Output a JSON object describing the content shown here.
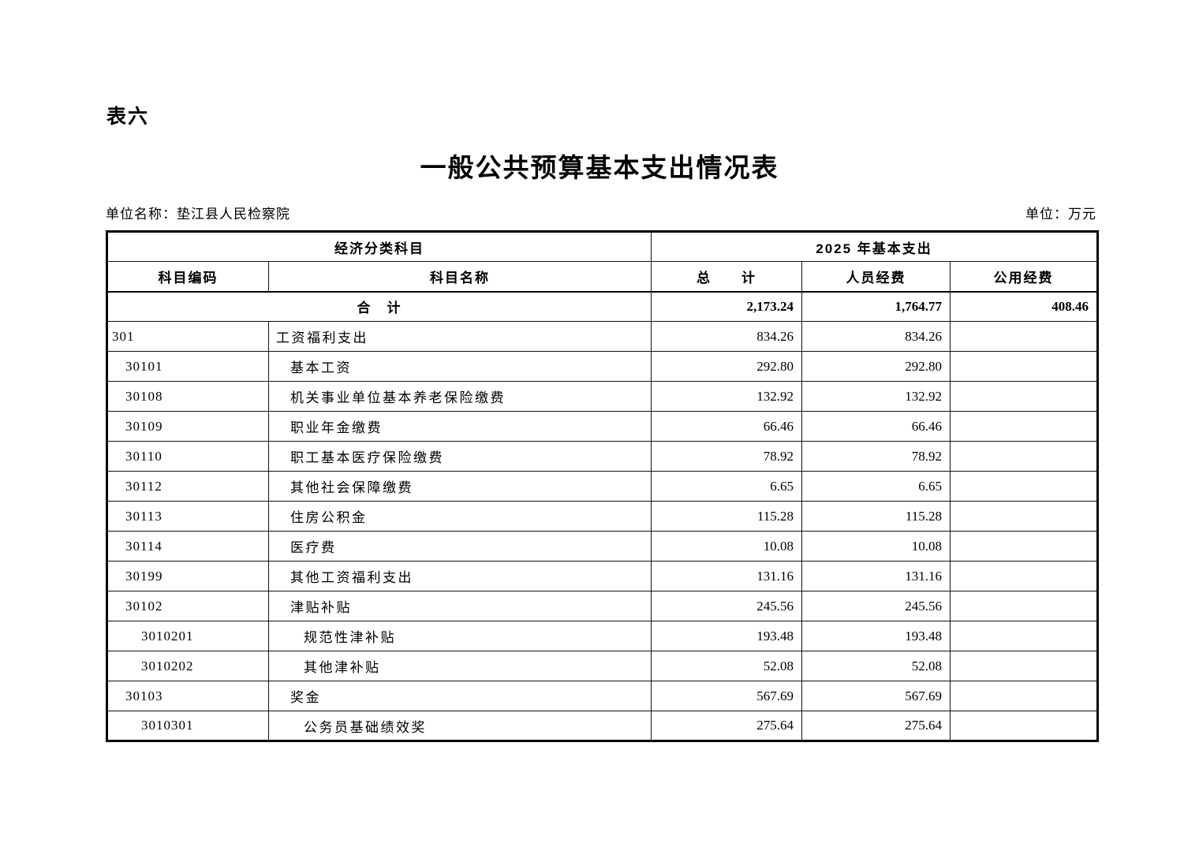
{
  "page": {
    "table_label": "表六",
    "title": "一般公共预算基本支出情况表",
    "unit_name": "单位名称：垫江县人民检察院",
    "unit_measure": "单位：万元"
  },
  "table": {
    "header": {
      "group_left": "经济分类科目",
      "group_right": "2025 年基本支出",
      "col_code": "科目编码",
      "col_name": "科目名称",
      "col_total": "总　　计",
      "col_personnel": "人员经费",
      "col_public": "公用经费"
    },
    "total_row": {
      "label": "合　计",
      "total": "2,173.24",
      "personnel": "1,764.77",
      "public": "408.46"
    },
    "rows": [
      {
        "code": "301",
        "name": "工资福利支出",
        "level": 1,
        "total": "834.26",
        "personnel": "834.26",
        "public": ""
      },
      {
        "code": "30101",
        "name": "基本工资",
        "level": 2,
        "total": "292.80",
        "personnel": "292.80",
        "public": ""
      },
      {
        "code": "30108",
        "name": "机关事业单位基本养老保险缴费",
        "level": 2,
        "total": "132.92",
        "personnel": "132.92",
        "public": ""
      },
      {
        "code": "30109",
        "name": "职业年金缴费",
        "level": 2,
        "total": "66.46",
        "personnel": "66.46",
        "public": ""
      },
      {
        "code": "30110",
        "name": "职工基本医疗保险缴费",
        "level": 2,
        "total": "78.92",
        "personnel": "78.92",
        "public": ""
      },
      {
        "code": "30112",
        "name": "其他社会保障缴费",
        "level": 2,
        "total": "6.65",
        "personnel": "6.65",
        "public": ""
      },
      {
        "code": "30113",
        "name": "住房公积金",
        "level": 2,
        "total": "115.28",
        "personnel": "115.28",
        "public": ""
      },
      {
        "code": "30114",
        "name": "医疗费",
        "level": 2,
        "total": "10.08",
        "personnel": "10.08",
        "public": ""
      },
      {
        "code": "30199",
        "name": "其他工资福利支出",
        "level": 2,
        "total": "131.16",
        "personnel": "131.16",
        "public": ""
      },
      {
        "code": "30102",
        "name": "津贴补贴",
        "level": 2,
        "total": "245.56",
        "personnel": "245.56",
        "public": ""
      },
      {
        "code": "3010201",
        "name": "规范性津补贴",
        "level": 3,
        "total": "193.48",
        "personnel": "193.48",
        "public": ""
      },
      {
        "code": "3010202",
        "name": "其他津补贴",
        "level": 3,
        "total": "52.08",
        "personnel": "52.08",
        "public": ""
      },
      {
        "code": "30103",
        "name": "奖金",
        "level": 2,
        "total": "567.69",
        "personnel": "567.69",
        "public": ""
      },
      {
        "code": "3010301",
        "name": "公务员基础绩效奖",
        "level": 3,
        "total": "275.64",
        "personnel": "275.64",
        "public": ""
      }
    ]
  }
}
